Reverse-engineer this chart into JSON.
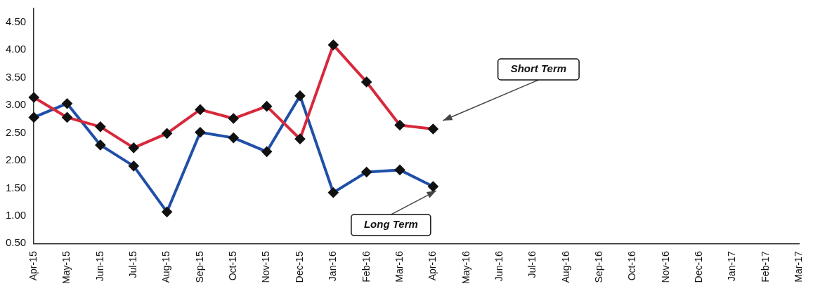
{
  "chart_data": {
    "type": "line",
    "categories": [
      "Apr-15",
      "May-15",
      "Jun-15",
      "Jul-15",
      "Aug-15",
      "Sep-15",
      "Oct-15",
      "Nov-15",
      "Dec-15",
      "Jan-16",
      "Feb-16",
      "Mar-16",
      "Apr-16",
      "May-16",
      "Jun-16",
      "Jul-16",
      "Aug-16",
      "Sep-16",
      "Oct-16",
      "Nov-16",
      "Dec-16",
      "Jan-17",
      "Feb-17",
      "Mar-17"
    ],
    "series": [
      {
        "name": "Short Term",
        "color": "#d8283c",
        "values": [
          3.14,
          2.78,
          2.61,
          2.23,
          2.49,
          2.92,
          2.76,
          2.98,
          2.39,
          4.09,
          3.42,
          2.64,
          2.57,
          null,
          null,
          null,
          null,
          null,
          null,
          null,
          null,
          null,
          null,
          null
        ]
      },
      {
        "name": "Long Term",
        "color": "#1f4fa8",
        "values": [
          2.78,
          3.03,
          2.28,
          1.9,
          1.07,
          2.51,
          2.41,
          2.16,
          3.17,
          1.42,
          1.79,
          1.83,
          1.53,
          null,
          null,
          null,
          null,
          null,
          null,
          null,
          null,
          null,
          null,
          null
        ]
      }
    ],
    "ylim": [
      0.5,
      4.75
    ],
    "yticks": [
      {
        "value": 0.5,
        "label": "0.50"
      },
      {
        "value": 1,
        "label": "1.00"
      },
      {
        "value": 1.5,
        "label": "1.50"
      },
      {
        "value": 2,
        "label": "2.00"
      },
      {
        "value": 2.5,
        "label": "2.50"
      },
      {
        "value": 3,
        "label": "3.00"
      },
      {
        "value": 3.5,
        "label": "3.50"
      },
      {
        "value": 4,
        "label": "4.00"
      },
      {
        "value": 4.5,
        "label": "4.50"
      }
    ],
    "grid": false,
    "legend": false,
    "marker": "diamond",
    "line_style": "solid"
  }
}
